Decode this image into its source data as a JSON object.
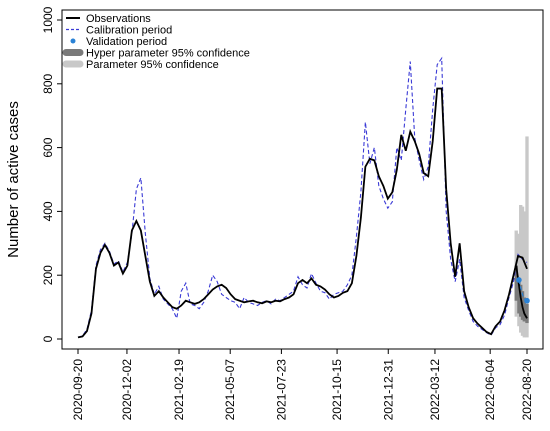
{
  "chart_data": {
    "type": "line",
    "title": "",
    "xlabel": "",
    "ylabel": "Number of active cases",
    "ylim": [
      0,
      1000
    ],
    "xlim": [
      0,
      100
    ],
    "y_ticks": [
      0,
      200,
      400,
      600,
      800,
      1000
    ],
    "x_tick_labels": [
      "2020-09-20",
      "2020-12-02",
      "2021-02-19",
      "2021-05-07",
      "2021-07-23",
      "2021-10-15",
      "2021-12-31",
      "2022-03-12",
      "2022-06-04",
      "2022-08-20"
    ],
    "x_tick_positions": [
      0,
      10.9,
      22.5,
      33.9,
      45.3,
      57.7,
      69.1,
      79.5,
      91.8,
      100
    ],
    "grid": false,
    "legend_position": "top-left",
    "legend": [
      {
        "label": "Observations",
        "style": "solid-line",
        "color": "#000000"
      },
      {
        "label": "Calibration period",
        "style": "dashed-line",
        "color": "#3a3ad6"
      },
      {
        "label": "Validation period",
        "style": "point",
        "color": "#2a82d6"
      },
      {
        "label": "Hyper parameter 95% confidence",
        "style": "thick-band",
        "color": "#7a7a7a"
      },
      {
        "label": "Parameter 95% confidence",
        "style": "thick-band",
        "color": "#c8c8c8"
      }
    ],
    "series": [
      {
        "name": "Observations",
        "color": "#000000",
        "points": [
          [
            0,
            5
          ],
          [
            1,
            8
          ],
          [
            2,
            25
          ],
          [
            3,
            80
          ],
          [
            4,
            220
          ],
          [
            5,
            270
          ],
          [
            6,
            295
          ],
          [
            7,
            270
          ],
          [
            8,
            230
          ],
          [
            9,
            240
          ],
          [
            10,
            205
          ],
          [
            11,
            230
          ],
          [
            12,
            340
          ],
          [
            13,
            370
          ],
          [
            14,
            340
          ],
          [
            15,
            260
          ],
          [
            16,
            180
          ],
          [
            17,
            135
          ],
          [
            18,
            150
          ],
          [
            19,
            130
          ],
          [
            20,
            115
          ],
          [
            21,
            100
          ],
          [
            22,
            95
          ],
          [
            23,
            105
          ],
          [
            24,
            120
          ],
          [
            25,
            115
          ],
          [
            26,
            110
          ],
          [
            27,
            115
          ],
          [
            28,
            125
          ],
          [
            29,
            140
          ],
          [
            30,
            155
          ],
          [
            31,
            165
          ],
          [
            32,
            170
          ],
          [
            33,
            160
          ],
          [
            34,
            140
          ],
          [
            35,
            125
          ],
          [
            36,
            120
          ],
          [
            37,
            115
          ],
          [
            38,
            118
          ],
          [
            39,
            120
          ],
          [
            40,
            115
          ],
          [
            41,
            112
          ],
          [
            42,
            118
          ],
          [
            43,
            115
          ],
          [
            44,
            120
          ],
          [
            45,
            118
          ],
          [
            46,
            125
          ],
          [
            47,
            130
          ],
          [
            48,
            140
          ],
          [
            49,
            175
          ],
          [
            50,
            185
          ],
          [
            51,
            175
          ],
          [
            52,
            190
          ],
          [
            53,
            170
          ],
          [
            54,
            165
          ],
          [
            55,
            155
          ],
          [
            56,
            140
          ],
          [
            57,
            130
          ],
          [
            58,
            135
          ],
          [
            59,
            145
          ],
          [
            60,
            150
          ],
          [
            61,
            175
          ],
          [
            62,
            260
          ],
          [
            63,
            380
          ],
          [
            64,
            540
          ],
          [
            65,
            565
          ],
          [
            66,
            560
          ],
          [
            67,
            510
          ],
          [
            68,
            480
          ],
          [
            69,
            440
          ],
          [
            70,
            460
          ],
          [
            71,
            530
          ],
          [
            72,
            640
          ],
          [
            73,
            590
          ],
          [
            74,
            650
          ],
          [
            75,
            620
          ],
          [
            76,
            580
          ],
          [
            77,
            520
          ],
          [
            78,
            510
          ],
          [
            79,
            620
          ],
          [
            80,
            785
          ],
          [
            81,
            785
          ],
          [
            82,
            470
          ],
          [
            83,
            300
          ],
          [
            84,
            195
          ],
          [
            85,
            300
          ],
          [
            86,
            150
          ],
          [
            87,
            100
          ],
          [
            88,
            65
          ],
          [
            89,
            48
          ],
          [
            90,
            35
          ],
          [
            91,
            22
          ],
          [
            92,
            15
          ],
          [
            93,
            40
          ],
          [
            94,
            55
          ],
          [
            95,
            90
          ],
          [
            96,
            140
          ],
          [
            97,
            200
          ],
          [
            98,
            260
          ],
          [
            99,
            255
          ],
          [
            100,
            220
          ]
        ]
      },
      {
        "name": "Calibration period",
        "color": "#3a3ad6",
        "points": [
          [
            0,
            5
          ],
          [
            1,
            10
          ],
          [
            2,
            30
          ],
          [
            3,
            90
          ],
          [
            4,
            230
          ],
          [
            5,
            280
          ],
          [
            6,
            300
          ],
          [
            7,
            275
          ],
          [
            8,
            235
          ],
          [
            9,
            245
          ],
          [
            10,
            210
          ],
          [
            11,
            240
          ],
          [
            12,
            330
          ],
          [
            13,
            470
          ],
          [
            14,
            505
          ],
          [
            15,
            330
          ],
          [
            16,
            190
          ],
          [
            17,
            140
          ],
          [
            18,
            165
          ],
          [
            19,
            125
          ],
          [
            20,
            110
          ],
          [
            21,
            95
          ],
          [
            22,
            65
          ],
          [
            23,
            150
          ],
          [
            24,
            175
          ],
          [
            25,
            110
          ],
          [
            26,
            105
          ],
          [
            27,
            95
          ],
          [
            28,
            115
          ],
          [
            29,
            150
          ],
          [
            30,
            200
          ],
          [
            31,
            180
          ],
          [
            32,
            140
          ],
          [
            33,
            130
          ],
          [
            34,
            120
          ],
          [
            35,
            115
          ],
          [
            36,
            95
          ],
          [
            37,
            130
          ],
          [
            38,
            115
          ],
          [
            39,
            110
          ],
          [
            40,
            105
          ],
          [
            41,
            115
          ],
          [
            42,
            120
          ],
          [
            43,
            110
          ],
          [
            44,
            125
          ],
          [
            45,
            120
          ],
          [
            46,
            130
          ],
          [
            47,
            140
          ],
          [
            48,
            150
          ],
          [
            49,
            195
          ],
          [
            50,
            170
          ],
          [
            51,
            160
          ],
          [
            52,
            205
          ],
          [
            53,
            175
          ],
          [
            54,
            150
          ],
          [
            55,
            145
          ],
          [
            56,
            125
          ],
          [
            57,
            140
          ],
          [
            58,
            145
          ],
          [
            59,
            150
          ],
          [
            60,
            170
          ],
          [
            61,
            200
          ],
          [
            62,
            320
          ],
          [
            63,
            460
          ],
          [
            64,
            680
          ],
          [
            65,
            550
          ],
          [
            66,
            600
          ],
          [
            67,
            480
          ],
          [
            68,
            440
          ],
          [
            69,
            410
          ],
          [
            70,
            430
          ],
          [
            71,
            600
          ],
          [
            72,
            560
          ],
          [
            73,
            720
          ],
          [
            74,
            870
          ],
          [
            75,
            630
          ],
          [
            76,
            560
          ],
          [
            77,
            500
          ],
          [
            78,
            540
          ],
          [
            79,
            720
          ],
          [
            80,
            860
          ],
          [
            81,
            880
          ],
          [
            82,
            400
          ],
          [
            83,
            250
          ],
          [
            84,
            180
          ],
          [
            85,
            250
          ],
          [
            86,
            130
          ],
          [
            87,
            90
          ],
          [
            88,
            55
          ],
          [
            89,
            40
          ],
          [
            90,
            30
          ],
          [
            91,
            20
          ],
          [
            92,
            12
          ],
          [
            93,
            35
          ],
          [
            94,
            45
          ],
          [
            95,
            75
          ],
          [
            96,
            130
          ],
          [
            97,
            180
          ],
          [
            98,
            265
          ],
          [
            99,
            250
          ],
          [
            100,
            240
          ]
        ]
      }
    ],
    "validation_points": [
      [
        98.2,
        185
      ],
      [
        100,
        120
      ]
    ],
    "validation_line_color": "#2a82d6",
    "validation_line": [
      [
        98.2,
        185
      ],
      [
        98.6,
        160
      ],
      [
        99,
        140
      ],
      [
        99.4,
        125
      ],
      [
        100,
        120
      ]
    ],
    "validation_observed": [
      [
        97.6,
        230
      ],
      [
        98.2,
        170
      ],
      [
        98.6,
        130
      ],
      [
        99,
        100
      ],
      [
        99.4,
        80
      ],
      [
        100,
        65
      ]
    ],
    "hyper_band": [
      [
        97.6,
        120,
        230
      ],
      [
        98.2,
        80,
        190
      ],
      [
        98.6,
        70,
        170
      ],
      [
        99,
        60,
        150
      ],
      [
        99.4,
        55,
        130
      ],
      [
        100,
        50,
        110
      ]
    ],
    "param_band": [
      [
        97.6,
        70,
        340
      ],
      [
        98.2,
        40,
        330
      ],
      [
        98.6,
        20,
        420
      ],
      [
        99,
        10,
        415
      ],
      [
        99.4,
        5,
        400
      ],
      [
        100,
        5,
        635
      ]
    ]
  }
}
